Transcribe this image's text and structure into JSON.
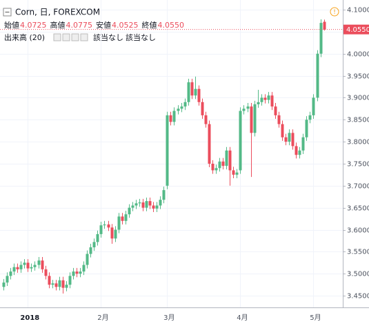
{
  "chart_data": {
    "type": "candlestick",
    "header": {
      "symbol": "Corn, 日, FOREXCOM",
      "ohlc_legend": [
        {
          "label": "始値",
          "value": "4.0725"
        },
        {
          "label": "高値",
          "value": "4.0775"
        },
        {
          "label": "安値",
          "value": "4.0525"
        },
        {
          "label": "終値",
          "value": "4.0550"
        }
      ]
    },
    "volume": {
      "title": "出来高 (20)",
      "values": [
        "該当なし",
        "該当なし"
      ]
    },
    "last_price_label": "4.0550",
    "last_price": 4.055,
    "up_color": "#53b987",
    "down_color": "#eb4d5c",
    "categories": [
      null,
      null,
      null,
      null,
      null,
      null,
      null,
      "2018",
      null,
      null,
      null,
      null,
      null,
      null,
      null,
      null,
      null,
      null,
      null,
      null,
      null,
      null,
      null,
      null,
      null,
      null,
      null,
      null,
      "2月",
      null,
      null,
      null,
      null,
      null,
      null,
      null,
      null,
      null,
      null,
      null,
      null,
      null,
      null,
      null,
      null,
      null,
      null,
      "3月",
      null,
      null,
      null,
      null,
      null,
      null,
      null,
      null,
      null,
      null,
      null,
      null,
      null,
      null,
      null,
      null,
      null,
      null,
      null,
      null,
      "4月",
      null,
      null,
      null,
      null,
      null,
      null,
      null,
      null,
      null,
      null,
      null,
      null,
      null,
      null,
      null,
      null,
      null,
      null,
      null,
      null,
      "5月",
      null,
      null,
      null
    ],
    "open": [
      3.47,
      3.48,
      3.495,
      3.505,
      3.515,
      3.51,
      3.52,
      3.525,
      3.512,
      3.515,
      3.52,
      3.53,
      3.51,
      3.495,
      3.475,
      3.478,
      3.47,
      3.485,
      3.468,
      3.475,
      3.495,
      3.505,
      3.5,
      3.505,
      3.52,
      3.545,
      3.56,
      3.572,
      3.59,
      3.61,
      3.612,
      3.605,
      3.58,
      3.6,
      3.63,
      3.62,
      3.635,
      3.65,
      3.655,
      3.66,
      3.662,
      3.65,
      3.665,
      3.655,
      3.648,
      3.655,
      3.668,
      3.7,
      3.86,
      3.845,
      3.87,
      3.875,
      3.88,
      3.89,
      3.935,
      3.905,
      3.92,
      3.89,
      3.86,
      3.84,
      3.75,
      3.735,
      3.74,
      3.755,
      3.745,
      3.78,
      3.735,
      3.725,
      3.735,
      3.87,
      3.875,
      3.88,
      3.82,
      3.885,
      3.89,
      3.9,
      3.895,
      3.905,
      3.88,
      3.86,
      3.84,
      3.81,
      3.8,
      3.82,
      3.79,
      3.77,
      3.78,
      3.81,
      3.85,
      3.86,
      3.9,
      4.0,
      4.0725
    ],
    "high": [
      3.488,
      3.503,
      3.513,
      3.523,
      3.523,
      3.528,
      3.533,
      3.533,
      3.523,
      3.528,
      3.538,
      3.538,
      3.518,
      3.503,
      3.486,
      3.486,
      3.493,
      3.493,
      3.483,
      3.503,
      3.513,
      3.513,
      3.513,
      3.528,
      3.553,
      3.568,
      3.58,
      3.598,
      3.618,
      3.62,
      3.62,
      3.613,
      3.608,
      3.638,
      3.638,
      3.643,
      3.658,
      3.663,
      3.668,
      3.67,
      3.67,
      3.673,
      3.673,
      3.663,
      3.663,
      3.676,
      3.698,
      3.868,
      3.868,
      3.878,
      3.883,
      3.888,
      3.898,
      3.943,
      3.943,
      3.948,
      3.928,
      3.898,
      3.868,
      3.848,
      3.758,
      3.748,
      3.763,
      3.763,
      3.788,
      3.788,
      3.743,
      3.738,
      3.878,
      3.883,
      3.888,
      3.888,
      3.893,
      3.918,
      3.908,
      3.908,
      3.913,
      3.913,
      3.888,
      3.868,
      3.848,
      3.818,
      3.828,
      3.828,
      3.798,
      3.788,
      3.818,
      3.858,
      3.868,
      3.908,
      4.008,
      4.078,
      4.0775
    ],
    "low": [
      3.462,
      3.472,
      3.487,
      3.497,
      3.502,
      3.502,
      3.512,
      3.504,
      3.504,
      3.507,
      3.512,
      3.502,
      3.487,
      3.467,
      3.467,
      3.462,
      3.462,
      3.455,
      3.46,
      3.467,
      3.487,
      3.492,
      3.492,
      3.497,
      3.512,
      3.537,
      3.552,
      3.564,
      3.582,
      3.602,
      3.597,
      3.568,
      3.572,
      3.592,
      3.612,
      3.612,
      3.627,
      3.642,
      3.647,
      3.652,
      3.642,
      3.642,
      3.647,
      3.64,
      3.64,
      3.647,
      3.66,
      3.692,
      3.837,
      3.837,
      3.862,
      3.867,
      3.872,
      3.882,
      3.897,
      3.897,
      3.882,
      3.852,
      3.832,
      3.742,
      3.727,
      3.727,
      3.732,
      3.737,
      3.737,
      3.7,
      3.717,
      3.717,
      3.727,
      3.862,
      3.867,
      3.72,
      3.812,
      3.877,
      3.882,
      3.887,
      3.887,
      3.872,
      3.852,
      3.832,
      3.802,
      3.792,
      3.792,
      3.782,
      3.762,
      3.762,
      3.772,
      3.802,
      3.842,
      3.852,
      3.892,
      3.992,
      4.0525
    ],
    "close": [
      3.48,
      3.495,
      3.505,
      3.515,
      3.51,
      3.52,
      3.525,
      3.512,
      3.515,
      3.52,
      3.53,
      3.51,
      3.495,
      3.475,
      3.478,
      3.47,
      3.485,
      3.468,
      3.475,
      3.495,
      3.505,
      3.5,
      3.505,
      3.52,
      3.545,
      3.56,
      3.572,
      3.59,
      3.61,
      3.612,
      3.605,
      3.58,
      3.6,
      3.63,
      3.62,
      3.635,
      3.65,
      3.655,
      3.66,
      3.662,
      3.65,
      3.665,
      3.655,
      3.648,
      3.655,
      3.668,
      3.69,
      3.86,
      3.845,
      3.87,
      3.875,
      3.88,
      3.89,
      3.935,
      3.905,
      3.92,
      3.89,
      3.86,
      3.84,
      3.75,
      3.735,
      3.74,
      3.755,
      3.745,
      3.78,
      3.735,
      3.725,
      3.73,
      3.87,
      3.875,
      3.88,
      3.82,
      3.885,
      3.89,
      3.9,
      3.895,
      3.905,
      3.88,
      3.86,
      3.84,
      3.81,
      3.8,
      3.82,
      3.79,
      3.77,
      3.78,
      3.81,
      3.85,
      3.86,
      3.9,
      4.0,
      4.07,
      4.055
    ],
    "ylim": [
      3.4234,
      4.122
    ],
    "yticks": [
      {
        "value": 3.45,
        "label": "3.4500"
      },
      {
        "value": 3.5,
        "label": "3.5000"
      },
      {
        "value": 3.55,
        "label": "3.5500"
      },
      {
        "value": 3.6,
        "label": "3.6000"
      },
      {
        "value": 3.65,
        "label": "3.6500"
      },
      {
        "value": 3.7,
        "label": "3.7000"
      },
      {
        "value": 3.75,
        "label": "3.7500"
      },
      {
        "value": 3.8,
        "label": "3.8000"
      },
      {
        "value": 3.85,
        "label": "3.8500"
      },
      {
        "value": 3.9,
        "label": "3.9000"
      },
      {
        "value": 3.95,
        "label": "3.9500"
      },
      {
        "value": 4.0,
        "label": "4.0000"
      },
      {
        "value": 4.05,
        "label": "4.0500"
      },
      {
        "value": 4.1,
        "label": "4.1000"
      }
    ],
    "grid": true
  }
}
